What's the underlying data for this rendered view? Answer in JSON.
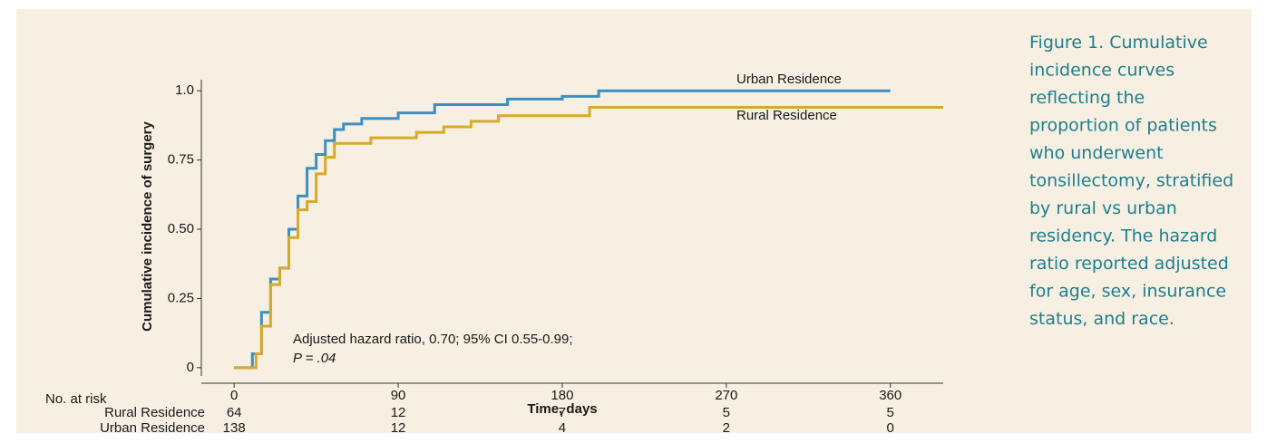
{
  "chart_data": {
    "type": "line",
    "step": true,
    "ylabel": "Cumulative incidence of surgery",
    "xlabel": "Time, days",
    "xlim": [
      -18,
      389
    ],
    "xticks": [
      0,
      90,
      180,
      270,
      360
    ],
    "ylim": [
      -0.03,
      1.04
    ],
    "yticks": [
      0,
      0.25,
      {
        "value": 0.5,
        "label": "0.50"
      },
      0.75,
      {
        "value": 1.0,
        "label": "1.0"
      }
    ],
    "series": [
      {
        "name": "Urban Residence",
        "color": "#3a90c3",
        "x": [
          0,
          6,
          10,
          15,
          20,
          25,
          30,
          35,
          40,
          45,
          50,
          55,
          60,
          70,
          90,
          110,
          150,
          180,
          200,
          360
        ],
        "values": [
          0,
          0,
          0.05,
          0.2,
          0.32,
          0.36,
          0.5,
          0.62,
          0.72,
          0.77,
          0.82,
          0.86,
          0.88,
          0.9,
          0.92,
          0.95,
          0.97,
          0.98,
          1.0,
          1.0
        ]
      },
      {
        "name": "Rural Residence",
        "color": "#d9a92b",
        "x": [
          0,
          10,
          12,
          15,
          20,
          25,
          30,
          35,
          40,
          45,
          50,
          55,
          75,
          100,
          115,
          130,
          145,
          195,
          389
        ],
        "values": [
          0,
          0,
          0.05,
          0.15,
          0.3,
          0.36,
          0.47,
          0.57,
          0.6,
          0.7,
          0.76,
          0.81,
          0.83,
          0.85,
          0.87,
          0.89,
          0.91,
          0.94,
          0.94
        ]
      }
    ],
    "annotation": [
      "Adjusted hazard ratio, 0.70; 95% CI 0.55-0.99;",
      "P = .04"
    ],
    "risk_table": {
      "title": "No. at risk",
      "rows": [
        {
          "name": "Rural Residence",
          "values": [
            64,
            12,
            7,
            5,
            5
          ]
        },
        {
          "name": "Urban Residence",
          "values": [
            138,
            12,
            4,
            2,
            0
          ]
        }
      ]
    }
  },
  "caption": [
    "Figure 1. Cumulative",
    "incidence curves",
    "reflecting the",
    "proportion of patients",
    "who underwent",
    "tonsillectomy, stratified",
    "by rural vs urban",
    "residency. The hazard",
    "ratio reported adjusted",
    "for age, sex, insurance",
    "status, and race."
  ]
}
